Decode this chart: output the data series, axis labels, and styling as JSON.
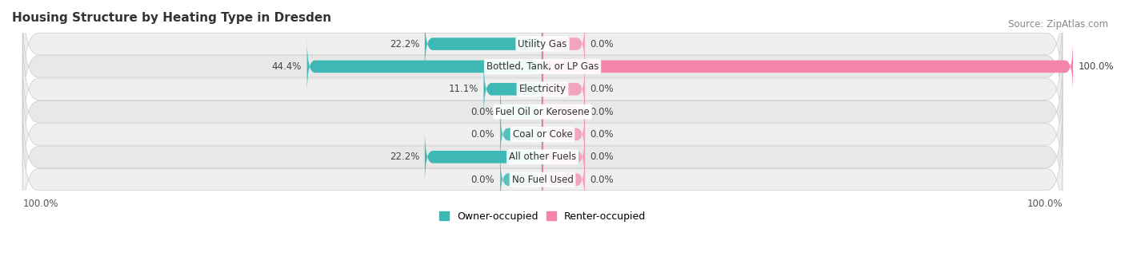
{
  "title": "Housing Structure by Heating Type in Dresden",
  "source": "Source: ZipAtlas.com",
  "categories": [
    "Utility Gas",
    "Bottled, Tank, or LP Gas",
    "Electricity",
    "Fuel Oil or Kerosene",
    "Coal or Coke",
    "All other Fuels",
    "No Fuel Used"
  ],
  "owner_values": [
    22.2,
    44.4,
    11.1,
    0.0,
    0.0,
    22.2,
    0.0
  ],
  "renter_values": [
    0.0,
    100.0,
    0.0,
    0.0,
    0.0,
    0.0,
    0.0
  ],
  "owner_color": "#3db8b4",
  "renter_color": "#f585a8",
  "row_colors": [
    "#efefef",
    "#e8e8e8",
    "#efefef",
    "#e8e8e8",
    "#efefef",
    "#e8e8e8",
    "#efefef"
  ],
  "title_fontsize": 11,
  "source_fontsize": 8.5,
  "label_fontsize": 8.5,
  "category_fontsize": 8.5,
  "legend_fontsize": 9,
  "max_value": 100.0,
  "min_bar_width": 8.0,
  "bar_height": 0.55
}
